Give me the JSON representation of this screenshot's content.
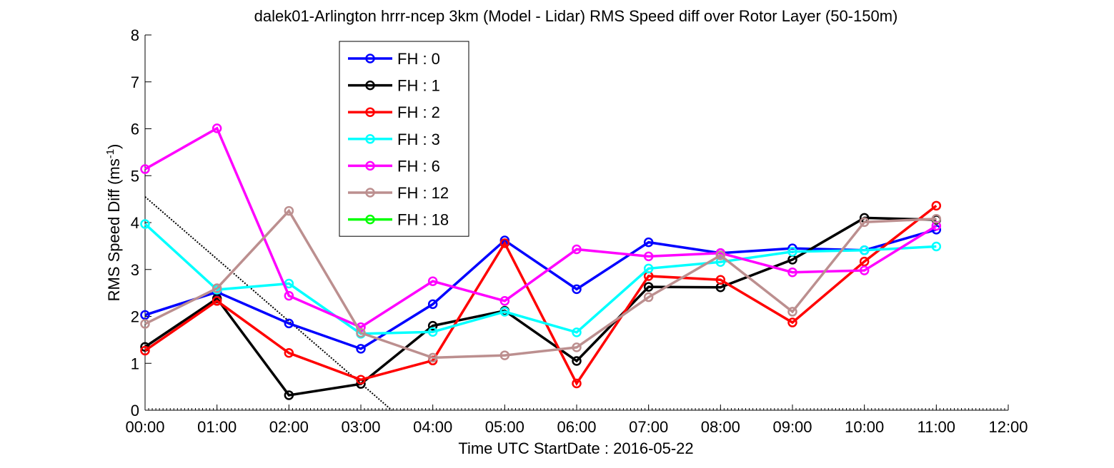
{
  "chart_data": {
    "type": "line",
    "title": "dalek01-Arlington hrrr-ncep 3km (Model - Lidar) RMS Speed diff over Rotor Layer (50-150m)",
    "xlabel": "Time UTC    StartDate : 2016-05-22",
    "ylabel_main": "RMS Speed Diff (ms",
    "ylabel_sup": "-1",
    "ylabel_close": ")",
    "x_ticks": [
      "00:00",
      "01:00",
      "02:00",
      "03:00",
      "04:00",
      "05:00",
      "06:00",
      "07:00",
      "08:00",
      "09:00",
      "10:00",
      "11:00",
      "12:00"
    ],
    "y_ticks": [
      "0",
      "1",
      "2",
      "3",
      "4",
      "5",
      "6",
      "7",
      "8"
    ],
    "xlim": [
      0,
      12
    ],
    "ylim": [
      0,
      8
    ],
    "legend_position": "top-left",
    "series": [
      {
        "name": "FH : 0",
        "color": "#0000ff",
        "x": [
          0,
          1,
          2,
          3,
          4,
          5,
          6,
          7,
          8,
          9,
          10,
          11
        ],
        "values": [
          2.03,
          2.52,
          1.85,
          1.31,
          2.26,
          3.62,
          2.58,
          3.58,
          3.35,
          3.45,
          3.41,
          3.85
        ]
      },
      {
        "name": "FH : 1",
        "color": "#000000",
        "x": [
          0,
          1,
          2,
          3,
          4,
          5,
          6,
          7,
          8,
          9,
          10,
          11
        ],
        "values": [
          1.35,
          2.38,
          0.32,
          0.56,
          1.8,
          2.12,
          1.05,
          2.63,
          2.62,
          3.21,
          4.1,
          4.06
        ]
      },
      {
        "name": "FH : 2",
        "color": "#ff0000",
        "x": [
          0,
          1,
          2,
          3,
          4,
          5,
          6,
          7,
          8,
          9,
          10,
          11
        ],
        "values": [
          1.27,
          2.33,
          1.22,
          0.65,
          1.06,
          3.56,
          0.57,
          2.86,
          2.78,
          1.87,
          3.17,
          4.36
        ]
      },
      {
        "name": "FH : 3",
        "color": "#00ffff",
        "x": [
          0,
          1,
          2,
          3,
          4,
          5,
          6,
          7,
          8,
          9,
          10,
          11
        ],
        "values": [
          3.97,
          2.57,
          2.7,
          1.63,
          1.67,
          2.1,
          1.66,
          3.02,
          3.16,
          3.38,
          3.41,
          3.49
        ]
      },
      {
        "name": "FH : 6",
        "color": "#ff00ff",
        "x": [
          0,
          1,
          2,
          3,
          4,
          5,
          6,
          7,
          8,
          9,
          10,
          11
        ],
        "values": [
          5.14,
          6.01,
          2.44,
          1.77,
          2.75,
          2.33,
          3.43,
          3.28,
          3.35,
          2.94,
          2.98,
          3.93
        ]
      },
      {
        "name": "FH : 12",
        "color": "#bc8f8f",
        "x": [
          0,
          1,
          2,
          3,
          4,
          5,
          6,
          7,
          8,
          9,
          10,
          11
        ],
        "values": [
          1.84,
          2.6,
          4.25,
          1.65,
          1.12,
          1.17,
          1.34,
          2.41,
          3.3,
          2.1,
          4.01,
          4.08
        ]
      },
      {
        "name": "FH : 18",
        "color": "#00ff00",
        "x": [],
        "values": []
      }
    ],
    "reference_line": {
      "style": "dotted",
      "color": "#000000",
      "x": [
        0,
        3.43
      ],
      "values": [
        4.55,
        0
      ]
    }
  }
}
